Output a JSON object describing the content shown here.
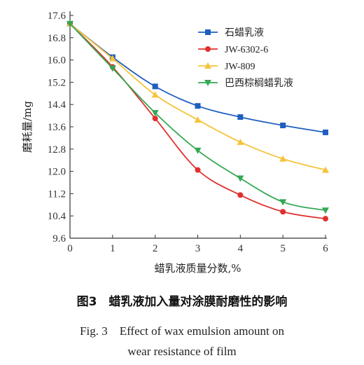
{
  "chart_data": {
    "type": "line",
    "xlabel": "蜡乳液质量分数,%",
    "ylabel": "磨耗量/mg",
    "xlim": [
      0,
      6
    ],
    "ylim": [
      9.6,
      17.6
    ],
    "xticks": [
      "0",
      "1",
      "2",
      "3",
      "4",
      "5",
      "6"
    ],
    "yticks": [
      "9.6",
      "10.4",
      "11.2",
      "12.0",
      "12.8",
      "13.6",
      "14.4",
      "15.2",
      "16.0",
      "16.8",
      "17.6"
    ],
    "x": [
      0,
      1,
      2,
      3,
      4,
      5,
      6
    ],
    "legend_position": "top-right",
    "grid": false,
    "series": [
      {
        "name": "石蜡乳液",
        "color": "#1f5fbf",
        "marker": "square",
        "values": [
          17.3,
          16.1,
          15.05,
          14.35,
          13.95,
          13.65,
          13.4
        ]
      },
      {
        "name": "JW-6302-6",
        "color": "#e0302e",
        "marker": "circle",
        "values": [
          17.3,
          15.75,
          13.9,
          12.05,
          11.15,
          10.55,
          10.3
        ]
      },
      {
        "name": "JW-809",
        "color": "#f5c43a",
        "marker": "triangle-up",
        "values": [
          17.3,
          16.05,
          14.75,
          13.85,
          13.05,
          12.45,
          12.05
        ]
      },
      {
        "name": "巴西棕榈蜡乳液",
        "color": "#34a853",
        "marker": "triangle-down",
        "values": [
          17.3,
          15.7,
          14.1,
          12.75,
          11.75,
          10.9,
          10.6
        ]
      }
    ]
  },
  "caption": {
    "cn": "图3　蜡乳液加入量对涂膜耐磨性的影响",
    "en_line1": "Fig. 3　Effect of wax emulsion amount on",
    "en_line2": "wear resistance of film"
  }
}
